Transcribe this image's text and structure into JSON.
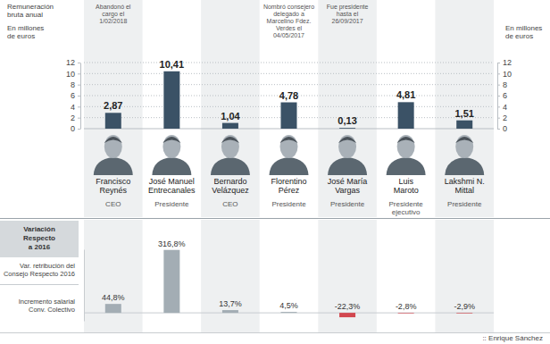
{
  "credit": ":: Enrique Sánchez",
  "chart_data": [
    {
      "type": "bar",
      "title": "Remuneración bruta anual",
      "y_label": "En millones de euros",
      "categories": [
        "Francisco Reynés",
        "José Manuel Entrecanales",
        "Bernardo Velázquez",
        "Florentino Pérez",
        "José María Vargas",
        "Luis Maroto",
        "Lakshmi N. Mittal"
      ],
      "roles": [
        "CEO",
        "Presidente",
        "CEO",
        "Presidente",
        "Presidente",
        "Presidente ejecutivo",
        "Presidente"
      ],
      "annotations": [
        "Abandonó el cargo el 1/02/2018",
        null,
        null,
        "Nombró consejero delegado a Marcelino Fdez. Verdes el 04/05/2017",
        "Fue presidente hasta el 26/09/2017",
        null,
        null
      ],
      "values": [
        2.87,
        10.41,
        1.04,
        4.78,
        0.13,
        4.81,
        1.51
      ],
      "value_labels": [
        "2,87",
        "10,41",
        "1,04",
        "4,78",
        "0,13",
        "4,81",
        "1,51"
      ],
      "color": "#3b5266",
      "ylim": [
        0,
        12
      ],
      "yticks": [
        0,
        2,
        4,
        6,
        8,
        10,
        12
      ],
      "grid": true,
      "data_labels": true
    },
    {
      "type": "bar",
      "title": "Variación Respecto a 2016",
      "categories": [
        null,
        null,
        null,
        null,
        null,
        null,
        null
      ],
      "series": [
        {
          "name": "Var. retribución del Consejo Respecto 2016",
          "color": "#a3adb4",
          "values": [
            null,
            316.8,
            null,
            null,
            null,
            null,
            null
          ],
          "value_labels": [
            null,
            "316,8%",
            null,
            null,
            null,
            null,
            null
          ]
        },
        {
          "name": "Incremento salarial Conv. Colectivo",
          "colors": [
            "#a3adb4",
            null,
            "#a3adb4",
            "#a3adb4",
            "#d2474f",
            "#d2474f",
            "#d2474f"
          ],
          "values": [
            44.8,
            null,
            13.7,
            4.5,
            -22.3,
            -2.8,
            -2.9
          ],
          "value_labels": [
            "44,8%",
            null,
            "13,7%",
            "4,5%",
            "-22,3%",
            "-2,8%",
            "-2,9%"
          ]
        }
      ],
      "ylim": [
        -40,
        320
      ],
      "yticks": [
        0
      ],
      "grid": true,
      "data_labels": true,
      "tick_labels": false
    }
  ]
}
